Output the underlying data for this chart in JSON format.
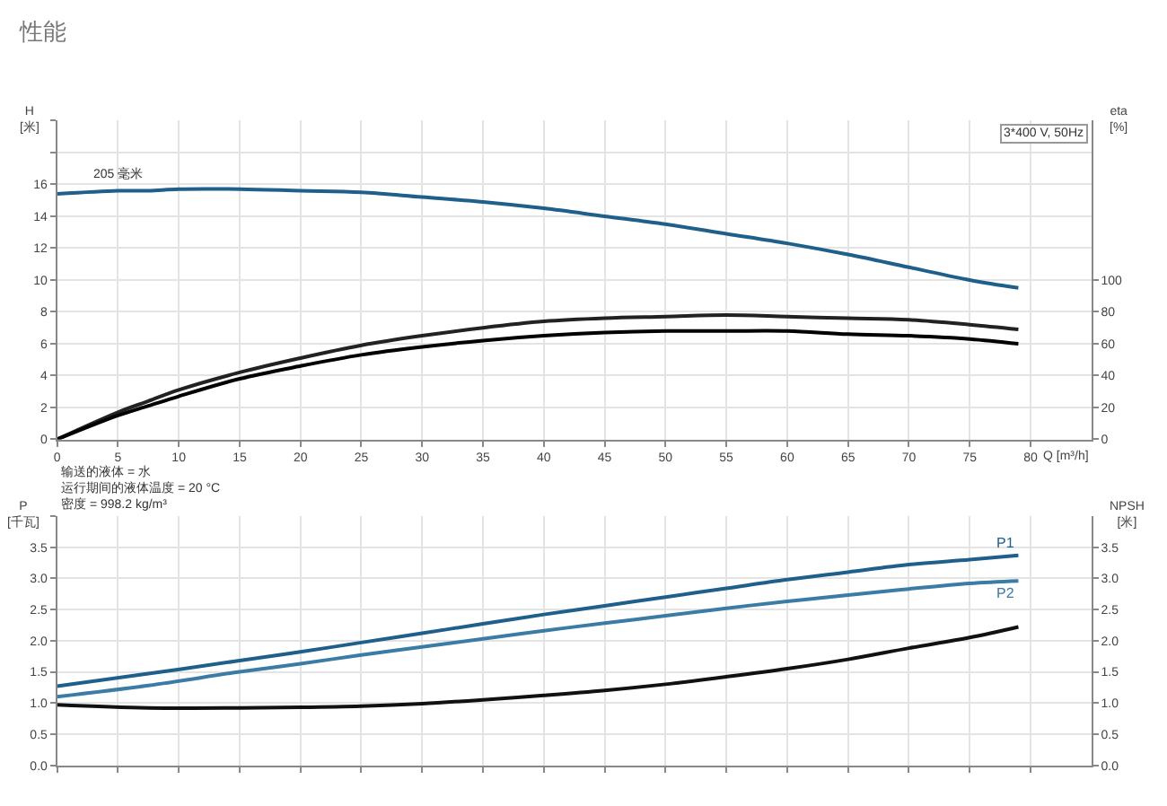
{
  "chart_data": [
    {
      "type": "line",
      "title": "性能",
      "xlabel": "Q [m³/h]",
      "ylabel": "H [米]",
      "y2label": "eta [%]",
      "x": [
        0,
        5,
        7.5,
        10,
        15,
        20,
        25,
        30,
        35,
        40,
        45,
        50,
        55,
        60,
        65,
        70,
        75,
        79
      ],
      "xlim": [
        0,
        85
      ],
      "xticks": [
        0,
        5,
        10,
        15,
        20,
        25,
        30,
        35,
        40,
        45,
        50,
        55,
        60,
        65,
        70,
        75,
        80
      ],
      "ylim": [
        0,
        20
      ],
      "yticks": [
        0,
        2,
        4,
        6,
        8,
        10,
        12,
        14,
        16,
        {
          "value": 18,
          "label": null
        },
        {
          "value": 20,
          "label": null
        }
      ],
      "y2lim": [
        0,
        200
      ],
      "y2ticks": [
        0,
        20,
        40,
        60,
        80,
        100
      ],
      "grid": true,
      "series": [
        {
          "color": "#1f5f8b",
          "values": [
            15.4,
            15.6,
            15.6,
            15.7,
            15.7,
            15.6,
            15.5,
            15.2,
            14.9,
            14.5,
            14.0,
            13.5,
            12.9,
            12.3,
            11.6,
            10.8,
            10.0,
            9.5
          ]
        },
        {
          "color": "#222222",
          "axis": "y2",
          "values": [
            0,
            17,
            24,
            31,
            42,
            51,
            59,
            65,
            70,
            74,
            76,
            77,
            78,
            77,
            76,
            75,
            72,
            69
          ]
        },
        {
          "color": "#000000",
          "axis": "y2",
          "values": [
            0,
            15,
            21,
            27,
            38,
            46,
            53,
            58,
            62,
            65,
            67,
            68,
            68,
            68,
            66,
            65,
            63,
            60
          ]
        }
      ],
      "annotations": [
        {
          "text": "205 毫米",
          "x": 5,
          "y": 16
        },
        "3*400 V, 50Hz",
        "输送的液体 = 水",
        "运行期间的液体温度 = 20 °C",
        "密度 = 998.2 kg/m³"
      ]
    },
    {
      "type": "line",
      "ylabel": "P [千瓦]",
      "y2label": "NPSH [米]",
      "x": [
        0,
        7.5,
        15,
        20,
        25,
        30,
        35,
        40,
        45,
        50,
        55,
        60,
        65,
        70,
        75,
        79
      ],
      "xlim": [
        0,
        85
      ],
      "xticks": [
        {
          "value": 0,
          "label": null
        },
        {
          "value": 5,
          "label": null
        },
        {
          "value": 10,
          "label": null
        },
        {
          "value": 15,
          "label": null
        },
        {
          "value": 20,
          "label": null
        },
        {
          "value": 25,
          "label": null
        },
        {
          "value": 30,
          "label": null
        },
        {
          "value": 35,
          "label": null
        },
        {
          "value": 40,
          "label": null
        },
        {
          "value": 45,
          "label": null
        },
        {
          "value": 50,
          "label": null
        },
        {
          "value": 55,
          "label": null
        },
        {
          "value": 60,
          "label": null
        },
        {
          "value": 65,
          "label": null
        },
        {
          "value": 70,
          "label": null
        },
        {
          "value": 75,
          "label": null
        },
        {
          "value": 80,
          "label": null
        }
      ],
      "ylim": [
        0,
        4
      ],
      "yticks": [
        {
          "value": 0,
          "label": "0.0"
        },
        0.5,
        {
          "value": 1,
          "label": "1.0"
        },
        1.5,
        {
          "value": 2,
          "label": "2.0"
        },
        2.5,
        {
          "value": 3,
          "label": "3.0"
        },
        3.5,
        {
          "value": 4,
          "label": null
        }
      ],
      "y2lim": [
        0,
        4
      ],
      "y2ticks": [
        {
          "value": 0,
          "label": "0.0"
        },
        0.5,
        {
          "value": 1,
          "label": "1.0"
        },
        1.5,
        {
          "value": 2,
          "label": "2.0"
        },
        2.5,
        {
          "value": 3,
          "label": "3.0"
        },
        3.5
      ],
      "grid": true,
      "tick_labels": "y",
      "series": [
        {
          "name": "P1",
          "color": "#1f5f8b",
          "values": [
            1.27,
            1.47,
            1.68,
            1.82,
            1.97,
            2.12,
            2.27,
            2.42,
            2.56,
            2.7,
            2.84,
            2.98,
            3.1,
            3.22,
            3.3,
            3.37
          ]
        },
        {
          "name": "P2",
          "color": "#3a7ca5",
          "values": [
            1.1,
            1.28,
            1.5,
            1.63,
            1.77,
            1.9,
            2.03,
            2.16,
            2.28,
            2.4,
            2.52,
            2.63,
            2.73,
            2.83,
            2.92,
            2.96
          ]
        },
        {
          "color": "#111111",
          "axis": "y2",
          "values": [
            0.97,
            0.92,
            0.92,
            0.93,
            0.95,
            0.99,
            1.05,
            1.12,
            1.2,
            1.3,
            1.42,
            1.55,
            1.7,
            1.88,
            2.05,
            2.22
          ]
        }
      ]
    }
  ]
}
